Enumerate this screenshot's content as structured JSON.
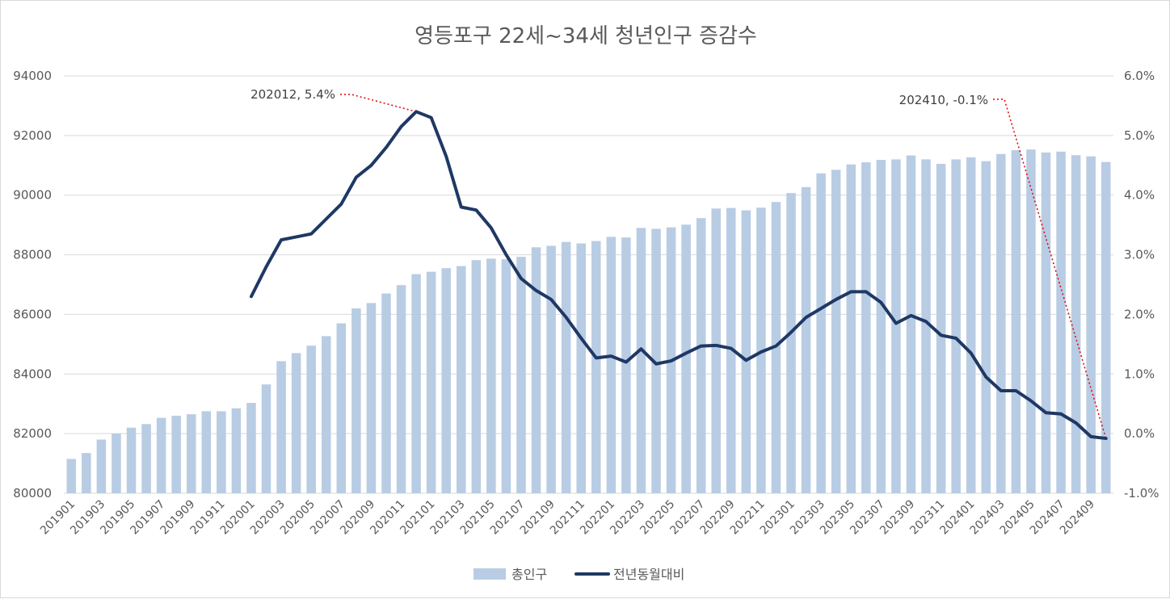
{
  "chart_data": {
    "type": "bar+line",
    "title": "영등포구 22세~34세 청년인구 증감수",
    "categories": [
      "201901",
      "201902",
      "201903",
      "201904",
      "201905",
      "201906",
      "201907",
      "201908",
      "201909",
      "201910",
      "201911",
      "201912",
      "202001",
      "202002",
      "202003",
      "202004",
      "202005",
      "202006",
      "202007",
      "202008",
      "202009",
      "202010",
      "202011",
      "202012",
      "202101",
      "202102",
      "202103",
      "202104",
      "202105",
      "202106",
      "202107",
      "202108",
      "202109",
      "202110",
      "202111",
      "202112",
      "202201",
      "202202",
      "202203",
      "202204",
      "202205",
      "202206",
      "202207",
      "202208",
      "202209",
      "202210",
      "202211",
      "202212",
      "202301",
      "202302",
      "202303",
      "202304",
      "202305",
      "202306",
      "202307",
      "202308",
      "202309",
      "202310",
      "202311",
      "202312",
      "202401",
      "202402",
      "202403",
      "202404",
      "202405",
      "202406",
      "202407",
      "202408",
      "202409",
      "202410"
    ],
    "x_tick_labels": [
      "201901",
      "201903",
      "201905",
      "201907",
      "201909",
      "201911",
      "202001",
      "202003",
      "202005",
      "202007",
      "202009",
      "202011",
      "202101",
      "202103",
      "202105",
      "202107",
      "202109",
      "202111",
      "202201",
      "202203",
      "202205",
      "202207",
      "202209",
      "202211",
      "202301",
      "202303",
      "202305",
      "202307",
      "202309",
      "202311",
      "202401",
      "202403",
      "202405",
      "202407",
      "202409"
    ],
    "series": [
      {
        "name": "총인구",
        "type": "bar",
        "axis": "left",
        "color": "#b8cce4",
        "values": [
          81150,
          81350,
          81800,
          82000,
          82200,
          82320,
          82530,
          82600,
          82650,
          82750,
          82750,
          82850,
          83030,
          83650,
          84430,
          84700,
          84950,
          85270,
          85700,
          86200,
          86380,
          86700,
          86980,
          87350,
          87430,
          87550,
          87620,
          87820,
          87870,
          87850,
          87930,
          88250,
          88300,
          88430,
          88380,
          88460,
          88600,
          88580,
          88900,
          88870,
          88920,
          89010,
          89230,
          89550,
          89570,
          89490,
          89580,
          89770,
          90070,
          90270,
          90730,
          90850,
          91030,
          91100,
          91180,
          91200,
          91330,
          91200,
          91050,
          91200,
          91270,
          91140,
          91380,
          91510,
          91530,
          91430,
          91460,
          91340,
          91300,
          91110
        ]
      },
      {
        "name": "전년동월대비",
        "type": "line",
        "axis": "right",
        "color": "#1f3864",
        "values": [
          null,
          null,
          null,
          null,
          null,
          null,
          null,
          null,
          null,
          null,
          null,
          null,
          2.3,
          2.8,
          3.25,
          3.3,
          3.35,
          3.6,
          3.85,
          4.3,
          4.5,
          4.8,
          5.15,
          5.4,
          5.3,
          4.65,
          3.8,
          3.75,
          3.45,
          3.0,
          2.6,
          2.4,
          2.25,
          1.95,
          1.6,
          1.27,
          1.3,
          1.2,
          1.42,
          1.17,
          1.22,
          1.35,
          1.47,
          1.48,
          1.43,
          1.23,
          1.37,
          1.47,
          1.7,
          1.95,
          2.1,
          2.25,
          2.38,
          2.38,
          2.2,
          1.85,
          1.98,
          1.88,
          1.65,
          1.6,
          1.35,
          0.95,
          0.72,
          0.72,
          0.55,
          0.35,
          0.33,
          0.18,
          -0.05,
          -0.08
        ]
      }
    ],
    "left_axis": {
      "min": 80000,
      "max": 94000,
      "ticks": [
        80000,
        82000,
        84000,
        86000,
        88000,
        90000,
        92000,
        94000
      ]
    },
    "right_axis": {
      "min": -1.0,
      "max": 6.0,
      "ticks": [
        "-1.0%",
        "0.0%",
        "1.0%",
        "2.0%",
        "3.0%",
        "4.0%",
        "5.0%",
        "6.0%"
      ]
    },
    "annotations": [
      {
        "text": "202012, 5.4%",
        "category": "202012",
        "value": 5.4
      },
      {
        "text": "202410, -0.1%",
        "category": "202410",
        "value": -0.08
      }
    ],
    "legend": [
      {
        "label": "총인구",
        "kind": "bar",
        "color": "#b8cce4"
      },
      {
        "label": "전년동월대비",
        "kind": "line",
        "color": "#1f3864"
      }
    ],
    "legend_position": "bottom",
    "grid": true
  }
}
